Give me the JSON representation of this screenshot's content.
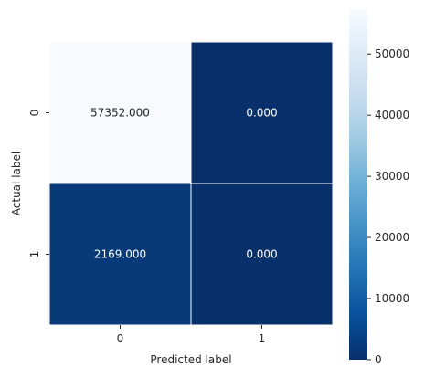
{
  "chart_data": {
    "type": "heatmap",
    "title": "",
    "xlabel": "Predicted label",
    "ylabel": "Actual label",
    "x_categories": [
      "0",
      "1"
    ],
    "y_categories": [
      "0",
      "1"
    ],
    "values": [
      [
        57352,
        0
      ],
      [
        2169,
        0
      ]
    ],
    "cell_labels": [
      [
        "57352.000",
        "0.000"
      ],
      [
        "2169.000",
        "0.000"
      ]
    ],
    "colormap": "Blues_r",
    "colorbar": {
      "range": [
        0,
        57352
      ],
      "ticks": [
        0,
        10000,
        20000,
        30000,
        40000,
        50000
      ],
      "tick_labels": [
        "0",
        "10000",
        "20000",
        "30000",
        "40000",
        "50000"
      ]
    },
    "grid": false,
    "cell_border_color": "#ffffff",
    "colors": {
      "high": "#f7fbff",
      "low": "#08306b",
      "text_on_light": "#262626",
      "text_on_dark": "#ffffff"
    }
  }
}
